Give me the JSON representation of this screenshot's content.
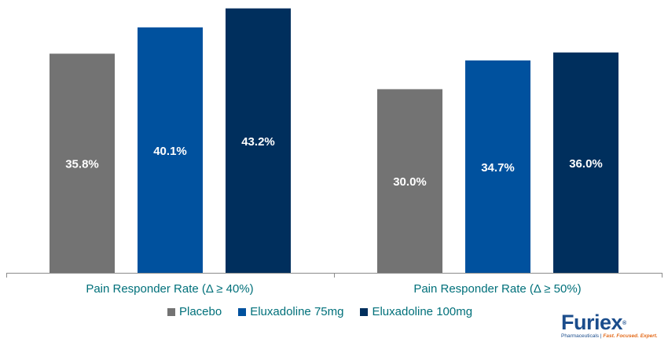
{
  "chart_data": {
    "type": "bar",
    "categories": [
      "Pain Responder Rate (Δ ≥ 40%)",
      "Pain Responder Rate (Δ ≥ 50%)"
    ],
    "series": [
      {
        "name": "Placebo",
        "values": [
          35.8,
          30.0
        ],
        "color": "#737373",
        "labels": [
          "35.8%",
          "30.0%"
        ]
      },
      {
        "name": "Eluxadoline 75mg",
        "values": [
          40.1,
          34.7
        ],
        "color": "#00519e",
        "labels": [
          "40.1%",
          "34.7%"
        ]
      },
      {
        "name": "Eluxadoline 100mg",
        "values": [
          43.2,
          36.0
        ],
        "color": "#002f5d",
        "labels": [
          "43.2%",
          "36.0%"
        ]
      }
    ],
    "ylim": [
      0,
      43.8
    ],
    "grid": false,
    "legend_position": "bottom",
    "label_color": "#ffffff",
    "category_label_color": "#00707a"
  },
  "logo": {
    "word": "Furie",
    "word_end": "x",
    "reg": "®",
    "company": "Pharmaceuticals",
    "divider": "|",
    "slogan": "Fast. Focused. Expert."
  }
}
